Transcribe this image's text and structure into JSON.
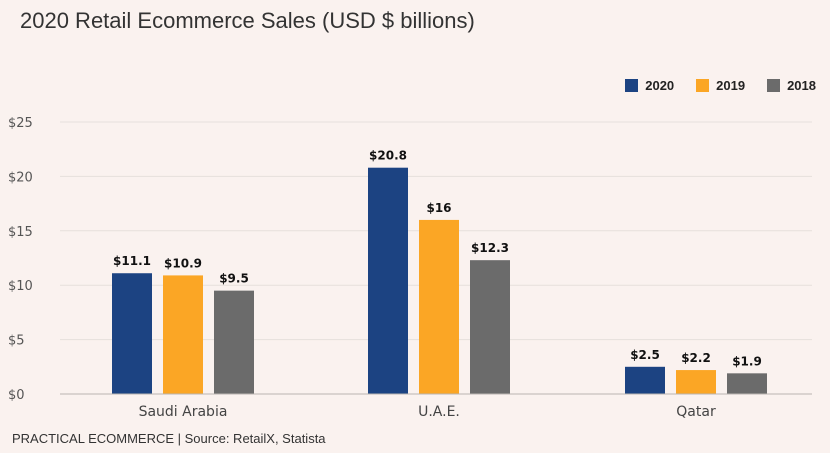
{
  "chart_data": {
    "type": "bar",
    "title": "2020 Retail Ecommerce Sales (USD $ billions)",
    "categories": [
      "Saudi Arabia",
      "U.A.E.",
      "Qatar"
    ],
    "series": [
      {
        "name": "2020",
        "color": "#1c4382",
        "values": [
          11.1,
          20.8,
          2.5
        ],
        "labels": [
          "$11.1",
          "$20.8",
          "$2.5"
        ]
      },
      {
        "name": "2019",
        "color": "#fba625",
        "values": [
          10.9,
          16,
          2.2
        ],
        "labels": [
          "$10.9",
          "$16",
          "$2.2"
        ]
      },
      {
        "name": "2018",
        "color": "#6b6b6b",
        "values": [
          9.5,
          12.3,
          1.9
        ],
        "labels": [
          "$9.5",
          "$12.3",
          "$1.9"
        ]
      }
    ],
    "yticks": [
      0,
      5,
      10,
      15,
      20,
      25
    ],
    "ytick_labels": [
      "$0",
      "$5",
      "$10",
      "$15",
      "$20",
      "$25"
    ],
    "ylim": [
      0,
      25
    ],
    "xlabel": "",
    "ylabel": "",
    "grid": true,
    "legend_position": "top-right"
  },
  "footer": "PRACTICAL ECOMMERCE | Source: RetailX, Statista"
}
